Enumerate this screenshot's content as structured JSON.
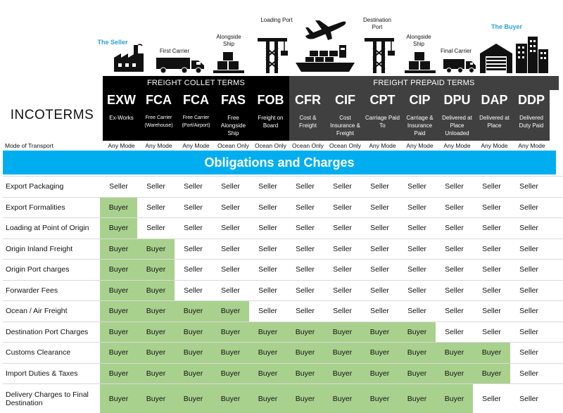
{
  "header": {
    "seller_label": "The Seller",
    "buyer_label": "The Buyer",
    "stage_labels": {
      "first_carrier": "First Carrier",
      "alongside_ship_1": "Alongside Ship",
      "loading_port": "Loading Port",
      "destination_port": "Destination Port",
      "alongside_ship_2": "Alongside Ship",
      "final_carrier": "Final Carrier"
    },
    "icons": [
      "factory-icon",
      "truck-icon",
      "cargo-boxes-icon",
      "crane-icon",
      "airplane-icon",
      "container-ship-icon",
      "crane-icon",
      "cargo-boxes-icon",
      "truck-icon",
      "warehouse-icon",
      "city-buildings-icon"
    ],
    "colors": {
      "blue": "#2aa3d6",
      "collect": "#000000",
      "prepaid": "#404040",
      "buyer_fill": "#a9d18e",
      "obligations_bar": "#00aeef"
    }
  },
  "table": {
    "title": "INCOTERMS",
    "collect_band": "FREIGHT COLLET TERMS",
    "prepaid_band": "FREIGHT  PREPAID TERMS",
    "terms": [
      {
        "code": "EXW",
        "name": "Ex-Works",
        "group": "collect",
        "mode": "Any Mode"
      },
      {
        "code": "FCA",
        "name": "Free Carrier (Warehouse)",
        "group": "collect",
        "mode": "Any Mode"
      },
      {
        "code": "FCA",
        "name": "Free Carrier (Port/Airport)",
        "group": "collect",
        "mode": "Any Mode"
      },
      {
        "code": "FAS",
        "name": "Free Alongside Ship",
        "group": "collect",
        "mode": "Ocean Only"
      },
      {
        "code": "FOB",
        "name": "Freight on Board",
        "group": "collect",
        "mode": "Ocean Only"
      },
      {
        "code": "CFR",
        "name": "Cost & Freight",
        "group": "prepaid",
        "mode": "Ocean Only"
      },
      {
        "code": "CIF",
        "name": "Cost Insurance & Freight",
        "group": "prepaid",
        "mode": "Ocean Only"
      },
      {
        "code": "CPT",
        "name": "Carriage Paid To",
        "group": "prepaid",
        "mode": "Any Mode"
      },
      {
        "code": "CIP",
        "name": "Carriage & Insurance Paid",
        "group": "prepaid",
        "mode": "Any Mode"
      },
      {
        "code": "DPU",
        "name": "Delivered at Place Unloaded",
        "group": "prepaid",
        "mode": "Any Mode"
      },
      {
        "code": "DAP",
        "name": "Delivered at Place",
        "group": "prepaid",
        "mode": "Any Mode"
      },
      {
        "code": "DDP",
        "name": "Delivered Duty Paid",
        "group": "prepaid",
        "mode": "Any Mode"
      }
    ],
    "mode_label": "Mode of Transport",
    "obligations_title": "Obligations and Charges",
    "rows": [
      {
        "label": "Export Packaging",
        "values": [
          "Seller",
          "Seller",
          "Seller",
          "Seller",
          "Seller",
          "Seller",
          "Seller",
          "Seller",
          "Seller",
          "Seller",
          "Seller",
          "Seller"
        ]
      },
      {
        "label": "Export Formalities",
        "values": [
          "Buyer",
          "Seller",
          "Seller",
          "Seller",
          "Seller",
          "Seller",
          "Seller",
          "Seller",
          "Seller",
          "Seller",
          "Seller",
          "Seller"
        ]
      },
      {
        "label": "Loading at Point of Origin",
        "values": [
          "Buyer",
          "Seller",
          "Seller",
          "Seller",
          "Seller",
          "Seller",
          "Seller",
          "Seller",
          "Seller",
          "Seller",
          "Seller",
          "Seller"
        ]
      },
      {
        "label": "Origin Inland Freight",
        "values": [
          "Buyer",
          "Buyer",
          "Seller",
          "Seller",
          "Seller",
          "Seller",
          "Seller",
          "Seller",
          "Seller",
          "Seller",
          "Seller",
          "Seller"
        ]
      },
      {
        "label": "Origin Port charges",
        "values": [
          "Buyer",
          "Buyer",
          "Seller",
          "Seller",
          "Seller",
          "Seller",
          "Seller",
          "Seller",
          "Seller",
          "Seller",
          "Seller",
          "Seller"
        ]
      },
      {
        "label": "Forwarder Fees",
        "values": [
          "Buyer",
          "Buyer",
          "Seller",
          "Seller",
          "Seller",
          "Seller",
          "Seller",
          "Seller",
          "Seller",
          "Seller",
          "Seller",
          "Seller"
        ]
      },
      {
        "label": "Ocean / Air Freight",
        "values": [
          "Buyer",
          "Buyer",
          "Buyer",
          "Buyer",
          "Seller",
          "Seller",
          "Seller",
          "Seller",
          "Seller",
          "Seller",
          "Seller",
          "Seller"
        ]
      },
      {
        "label": "Destination Port Charges",
        "values": [
          "Buyer",
          "Buyer",
          "Buyer",
          "Buyer",
          "Buyer",
          "Buyer",
          "Buyer",
          "Buyer",
          "Buyer",
          "Seller",
          "Seller",
          "Seller"
        ]
      },
      {
        "label": "Customs Clearance",
        "values": [
          "Buyer",
          "Buyer",
          "Buyer",
          "Buyer",
          "Buyer",
          "Buyer",
          "Buyer",
          "Buyer",
          "Buyer",
          "Buyer",
          "Buyer",
          "Seller"
        ]
      },
      {
        "label": "Import Duties & Taxes",
        "values": [
          "Buyer",
          "Buyer",
          "Buyer",
          "Buyer",
          "Buyer",
          "Buyer",
          "Buyer",
          "Buyer",
          "Buyer",
          "Buyer",
          "Buyer",
          "Seller"
        ]
      },
      {
        "label": "Delivery Charges to Final Destination",
        "values": [
          "Buyer",
          "Buyer",
          "Buyer",
          "Buyer",
          "Buyer",
          "Buyer",
          "Buyer",
          "Buyer",
          "Buyer",
          "Buyer",
          "Seller",
          "Seller"
        ]
      }
    ]
  }
}
